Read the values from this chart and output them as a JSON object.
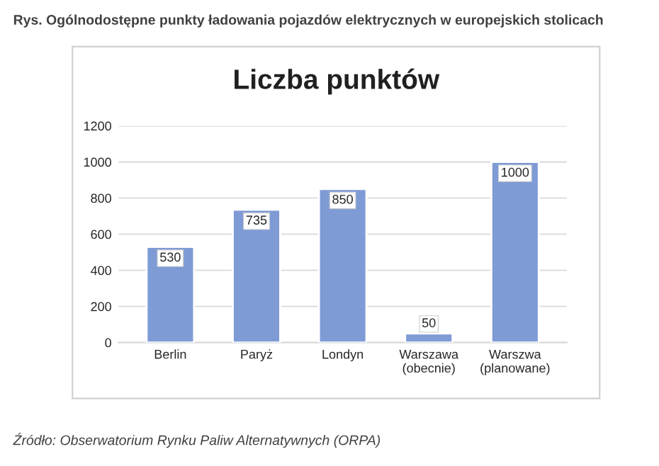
{
  "chart_data": {
    "type": "bar",
    "title": "Rys. Ogólnodostępne punkty ładowania pojazdów elektrycznych w europejskich stolicach",
    "subtitle": "Liczba punktów",
    "categories": [
      "Berlin",
      "Paryż",
      "Londyn",
      "Warszawa\n(obecnie)",
      "Warszwa\n(planowane)"
    ],
    "values": [
      530,
      735,
      850,
      50,
      1000
    ],
    "color": "#7f9bd6",
    "ylim": [
      0,
      1200
    ],
    "yticks": [
      0,
      200,
      400,
      600,
      800,
      1000,
      1200
    ],
    "grid": "y",
    "data_labels": true,
    "annotations": [
      "Źródło: Obserwatorium Rynku Paliw Alternatywnych (ORPA)"
    ]
  }
}
